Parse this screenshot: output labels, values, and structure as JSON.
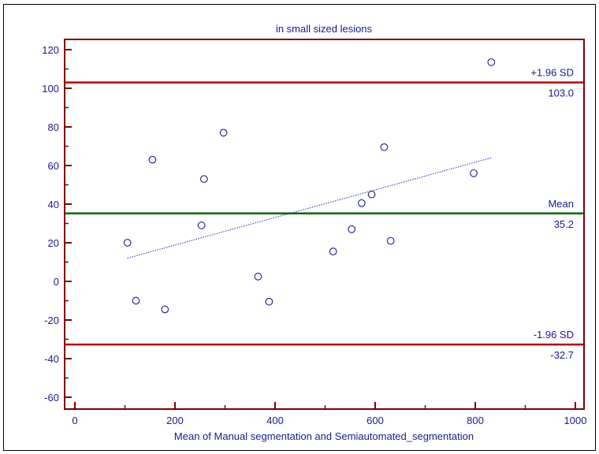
{
  "chart_data": {
    "type": "scatter",
    "title": "in small sized lesions",
    "xlabel": "Mean of Manual segmentation  and Semiautomated_segmentation",
    "ylabel": "",
    "xlim": [
      0,
      1000
    ],
    "ylim": [
      -65,
      128
    ],
    "x_ticks": [
      0,
      200,
      400,
      600,
      800,
      1000
    ],
    "y_ticks": [
      -60,
      -40,
      -20,
      0,
      20,
      40,
      60,
      80,
      100,
      120
    ],
    "points": [
      {
        "x": 105,
        "y": 20
      },
      {
        "x": 122,
        "y": -10
      },
      {
        "x": 155,
        "y": 63
      },
      {
        "x": 180,
        "y": -14.5
      },
      {
        "x": 253,
        "y": 29
      },
      {
        "x": 258,
        "y": 53
      },
      {
        "x": 297,
        "y": 77
      },
      {
        "x": 366,
        "y": 2.5
      },
      {
        "x": 388,
        "y": -10.5
      },
      {
        "x": 516,
        "y": 15.5
      },
      {
        "x": 553,
        "y": 27
      },
      {
        "x": 573,
        "y": 40.5
      },
      {
        "x": 593,
        "y": 45
      },
      {
        "x": 618,
        "y": 69.5
      },
      {
        "x": 631,
        "y": 21
      },
      {
        "x": 797,
        "y": 56
      },
      {
        "x": 832,
        "y": 113.5
      }
    ],
    "reference_lines": [
      {
        "name": "+1.96 SD",
        "value": 103.0,
        "value_label": "103.0",
        "color": "#b40000"
      },
      {
        "name": "Mean",
        "value": 35.2,
        "value_label": "35.2",
        "color": "#006400"
      },
      {
        "name": "-1.96 SD",
        "value": -32.7,
        "value_label": "-32.7",
        "color": "#b40000"
      }
    ],
    "regression_line": {
      "x1": 105,
      "y1": 12,
      "x2": 832,
      "y2": 64,
      "color": "#2828c8",
      "style": "dotted"
    },
    "colors": {
      "axis": "#800000",
      "text": "#1a1a8c",
      "points": "#1a1a8c"
    },
    "grid": false
  }
}
